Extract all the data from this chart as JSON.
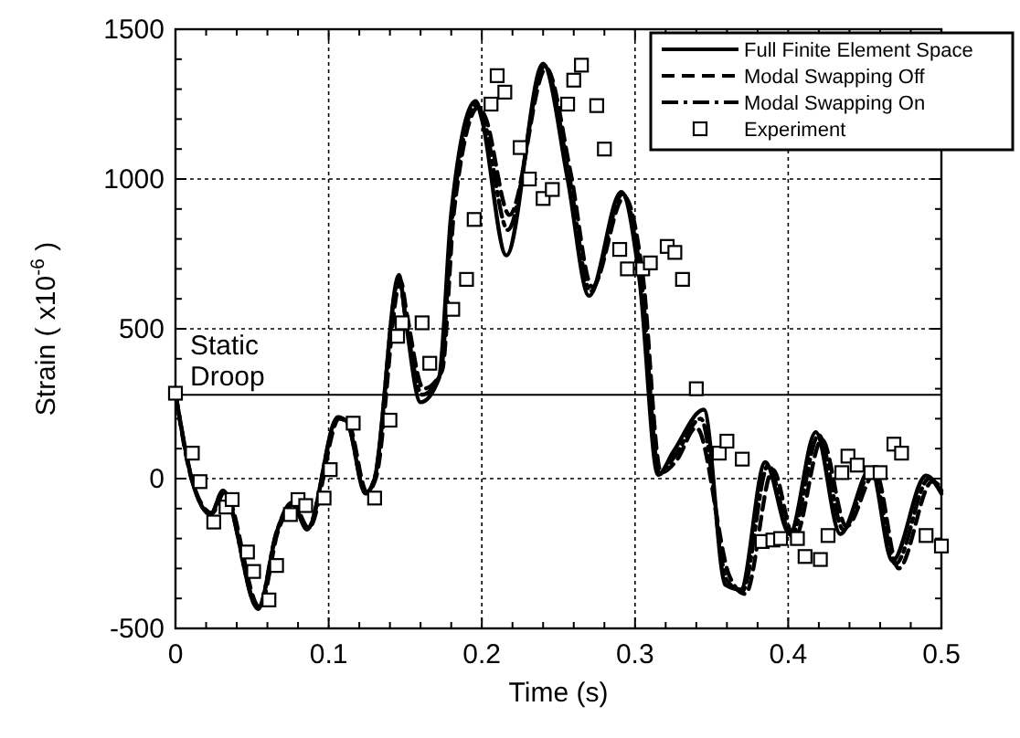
{
  "chart_data": {
    "type": "line",
    "xlabel": "Time (s)",
    "ylabel": "Strain ( x10$^{-6}$ )",
    "xlim": [
      0,
      0.5
    ],
    "ylim": [
      -500,
      1500
    ],
    "xticks": [
      0,
      0.1,
      0.2,
      0.3,
      0.4,
      0.5
    ],
    "yticks": [
      -500,
      0,
      500,
      1000,
      1500
    ],
    "grid": true,
    "legend": "top right",
    "ref_lines": [
      {
        "axis": "y",
        "value": 280,
        "label": "Static Droop",
        "color": "#000000",
        "line_style": "solid"
      }
    ],
    "series": [
      {
        "name": "Full Finite Element Space",
        "color": "#000000",
        "line_style": "solid",
        "x": [
          0,
          0.011,
          0.023,
          0.031,
          0.054,
          0.066,
          0.076,
          0.086,
          0.106,
          0.112,
          0.124,
          0.13,
          0.146,
          0.15,
          0.16,
          0.172,
          0.18,
          0.196,
          0.2,
          0.216,
          0.24,
          0.256,
          0.27,
          0.291,
          0.303,
          0.315,
          0.325,
          0.345,
          0.359,
          0.369,
          0.385,
          0.401,
          0.418,
          0.434,
          0.454,
          0.468,
          0.49,
          0.5
        ],
        "values": [
          285,
          -8,
          -120,
          -40,
          -435,
          -180,
          -80,
          -170,
          205,
          190,
          -50,
          0,
          680,
          540,
          255,
          335,
          885,
          1260,
          1200,
          745,
          1385,
          1000,
          610,
          957,
          660,
          12,
          90,
          230,
          -355,
          -370,
          55,
          -185,
          155,
          -185,
          35,
          -275,
          10,
          -50
        ]
      },
      {
        "name": "Modal Swapping Off",
        "color": "#000000",
        "line_style": "dashed",
        "x": [
          0,
          0.011,
          0.024,
          0.032,
          0.055,
          0.067,
          0.077,
          0.087,
          0.107,
          0.113,
          0.125,
          0.131,
          0.147,
          0.151,
          0.162,
          0.174,
          0.182,
          0.198,
          0.202,
          0.218,
          0.242,
          0.258,
          0.272,
          0.293,
          0.305,
          0.317,
          0.327,
          0.34,
          0.362,
          0.372,
          0.39,
          0.404,
          0.422,
          0.438,
          0.457,
          0.472,
          0.494,
          0.5
        ],
        "values": [
          285,
          -10,
          -115,
          -45,
          -430,
          -175,
          -85,
          -165,
          200,
          185,
          -45,
          5,
          660,
          550,
          300,
          360,
          900,
          1240,
          1210,
          880,
          1370,
          1020,
          640,
          940,
          680,
          20,
          60,
          170,
          -330,
          -385,
          30,
          -200,
          130,
          -160,
          20,
          -300,
          -10,
          -30
        ]
      },
      {
        "name": "Modal Swapping On",
        "color": "#000000",
        "line_style": "dashdot",
        "x": [
          0,
          0.011,
          0.023,
          0.031,
          0.054,
          0.066,
          0.076,
          0.086,
          0.106,
          0.112,
          0.124,
          0.13,
          0.146,
          0.15,
          0.161,
          0.173,
          0.181,
          0.197,
          0.201,
          0.217,
          0.241,
          0.257,
          0.271,
          0.292,
          0.304,
          0.316,
          0.326,
          0.343,
          0.36,
          0.37,
          0.387,
          0.402,
          0.42,
          0.436,
          0.455,
          0.47,
          0.492,
          0.5
        ],
        "values": [
          285,
          -8,
          -118,
          -42,
          -432,
          -178,
          -82,
          -168,
          202,
          188,
          -48,
          2,
          670,
          545,
          280,
          350,
          890,
          1250,
          1205,
          830,
          1378,
          1010,
          625,
          950,
          670,
          15,
          75,
          200,
          -340,
          -375,
          45,
          -190,
          145,
          -170,
          30,
          -285,
          0,
          -40
        ]
      },
      {
        "name": "Experiment",
        "type": "scatter",
        "marker": "square",
        "color": "#000000",
        "x": [
          0,
          0.011,
          0.016,
          0.025,
          0.033,
          0.037,
          0.047,
          0.051,
          0.061,
          0.066,
          0.075,
          0.08,
          0.085,
          0.097,
          0.101,
          0.116,
          0.13,
          0.14,
          0.145,
          0.148,
          0.161,
          0.166,
          0.181,
          0.19,
          0.195,
          0.206,
          0.21,
          0.215,
          0.225,
          0.231,
          0.24,
          0.246,
          0.256,
          0.26,
          0.265,
          0.275,
          0.28,
          0.29,
          0.295,
          0.305,
          0.31,
          0.321,
          0.326,
          0.331,
          0.34,
          0.355,
          0.36,
          0.37,
          0.383,
          0.39,
          0.395,
          0.406,
          0.411,
          0.421,
          0.426,
          0.435,
          0.439,
          0.445,
          0.454,
          0.46,
          0.469,
          0.474,
          0.49,
          0.5
        ],
        "values": [
          285,
          85,
          -10,
          -145,
          -95,
          -70,
          -245,
          -310,
          -405,
          -290,
          -120,
          -70,
          -90,
          -65,
          30,
          185,
          -65,
          195,
          475,
          520,
          520,
          385,
          565,
          665,
          865,
          1250,
          1345,
          1290,
          1105,
          1000,
          935,
          965,
          1250,
          1330,
          1380,
          1245,
          1100,
          765,
          700,
          700,
          720,
          775,
          755,
          665,
          300,
          85,
          125,
          65,
          -210,
          -205,
          -200,
          -200,
          -260,
          -270,
          -190,
          20,
          75,
          45,
          20,
          20,
          115,
          85,
          -190,
          -225
        ]
      }
    ]
  }
}
